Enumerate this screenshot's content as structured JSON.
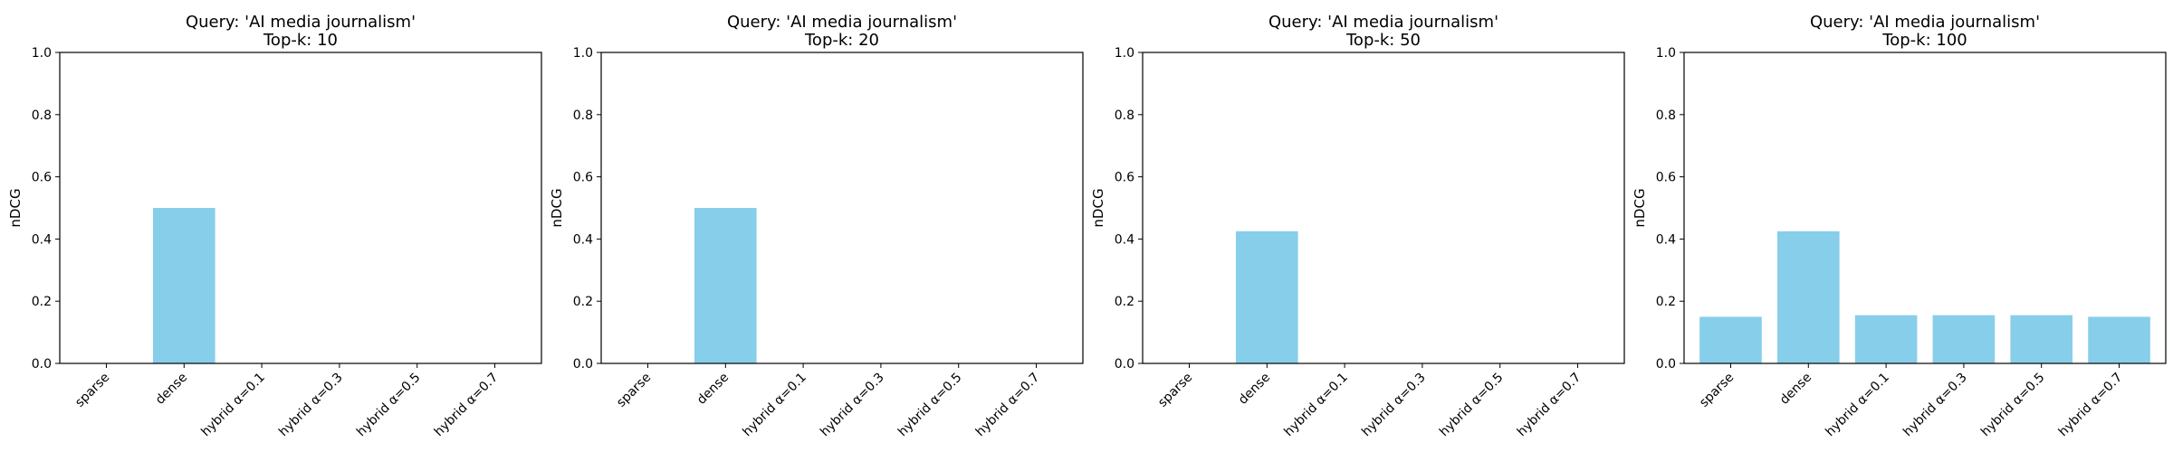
{
  "chart_data": [
    {
      "type": "bar",
      "title_line1": "Query: 'AI media journalism'",
      "title_line2": "Top-k: 10",
      "ylabel": "nDCG",
      "ylim": [
        0,
        1
      ],
      "yticks": [
        "0.0",
        "0.2",
        "0.4",
        "0.6",
        "0.8",
        "1.0"
      ],
      "categories": [
        "sparse",
        "dense",
        "hybrid α=0.1",
        "hybrid α=0.3",
        "hybrid α=0.5",
        "hybrid α=0.7"
      ],
      "values": [
        0.0,
        0.5,
        0.0,
        0.0,
        0.0,
        0.0
      ],
      "bar_color": "#87CEEB",
      "grid": false
    },
    {
      "type": "bar",
      "title_line1": "Query: 'AI media journalism'",
      "title_line2": "Top-k: 20",
      "ylabel": "nDCG",
      "ylim": [
        0,
        1
      ],
      "yticks": [
        "0.0",
        "0.2",
        "0.4",
        "0.6",
        "0.8",
        "1.0"
      ],
      "categories": [
        "sparse",
        "dense",
        "hybrid α=0.1",
        "hybrid α=0.3",
        "hybrid α=0.5",
        "hybrid α=0.7"
      ],
      "values": [
        0.0,
        0.5,
        0.0,
        0.0,
        0.0,
        0.0
      ],
      "bar_color": "#87CEEB",
      "grid": false
    },
    {
      "type": "bar",
      "title_line1": "Query: 'AI media journalism'",
      "title_line2": "Top-k: 50",
      "ylabel": "nDCG",
      "ylim": [
        0,
        1
      ],
      "yticks": [
        "0.0",
        "0.2",
        "0.4",
        "0.6",
        "0.8",
        "1.0"
      ],
      "categories": [
        "sparse",
        "dense",
        "hybrid α=0.1",
        "hybrid α=0.3",
        "hybrid α=0.5",
        "hybrid α=0.7"
      ],
      "values": [
        0.0,
        0.425,
        0.0,
        0.0,
        0.0,
        0.0
      ],
      "bar_color": "#87CEEB",
      "grid": false
    },
    {
      "type": "bar",
      "title_line1": "Query: 'AI media journalism'",
      "title_line2": "Top-k: 100",
      "ylabel": "nDCG",
      "ylim": [
        0,
        1
      ],
      "yticks": [
        "0.0",
        "0.2",
        "0.4",
        "0.6",
        "0.8",
        "1.0"
      ],
      "categories": [
        "sparse",
        "dense",
        "hybrid α=0.1",
        "hybrid α=0.3",
        "hybrid α=0.5",
        "hybrid α=0.7"
      ],
      "values": [
        0.15,
        0.425,
        0.155,
        0.155,
        0.155,
        0.15
      ],
      "bar_color": "#87CEEB",
      "grid": false
    }
  ]
}
